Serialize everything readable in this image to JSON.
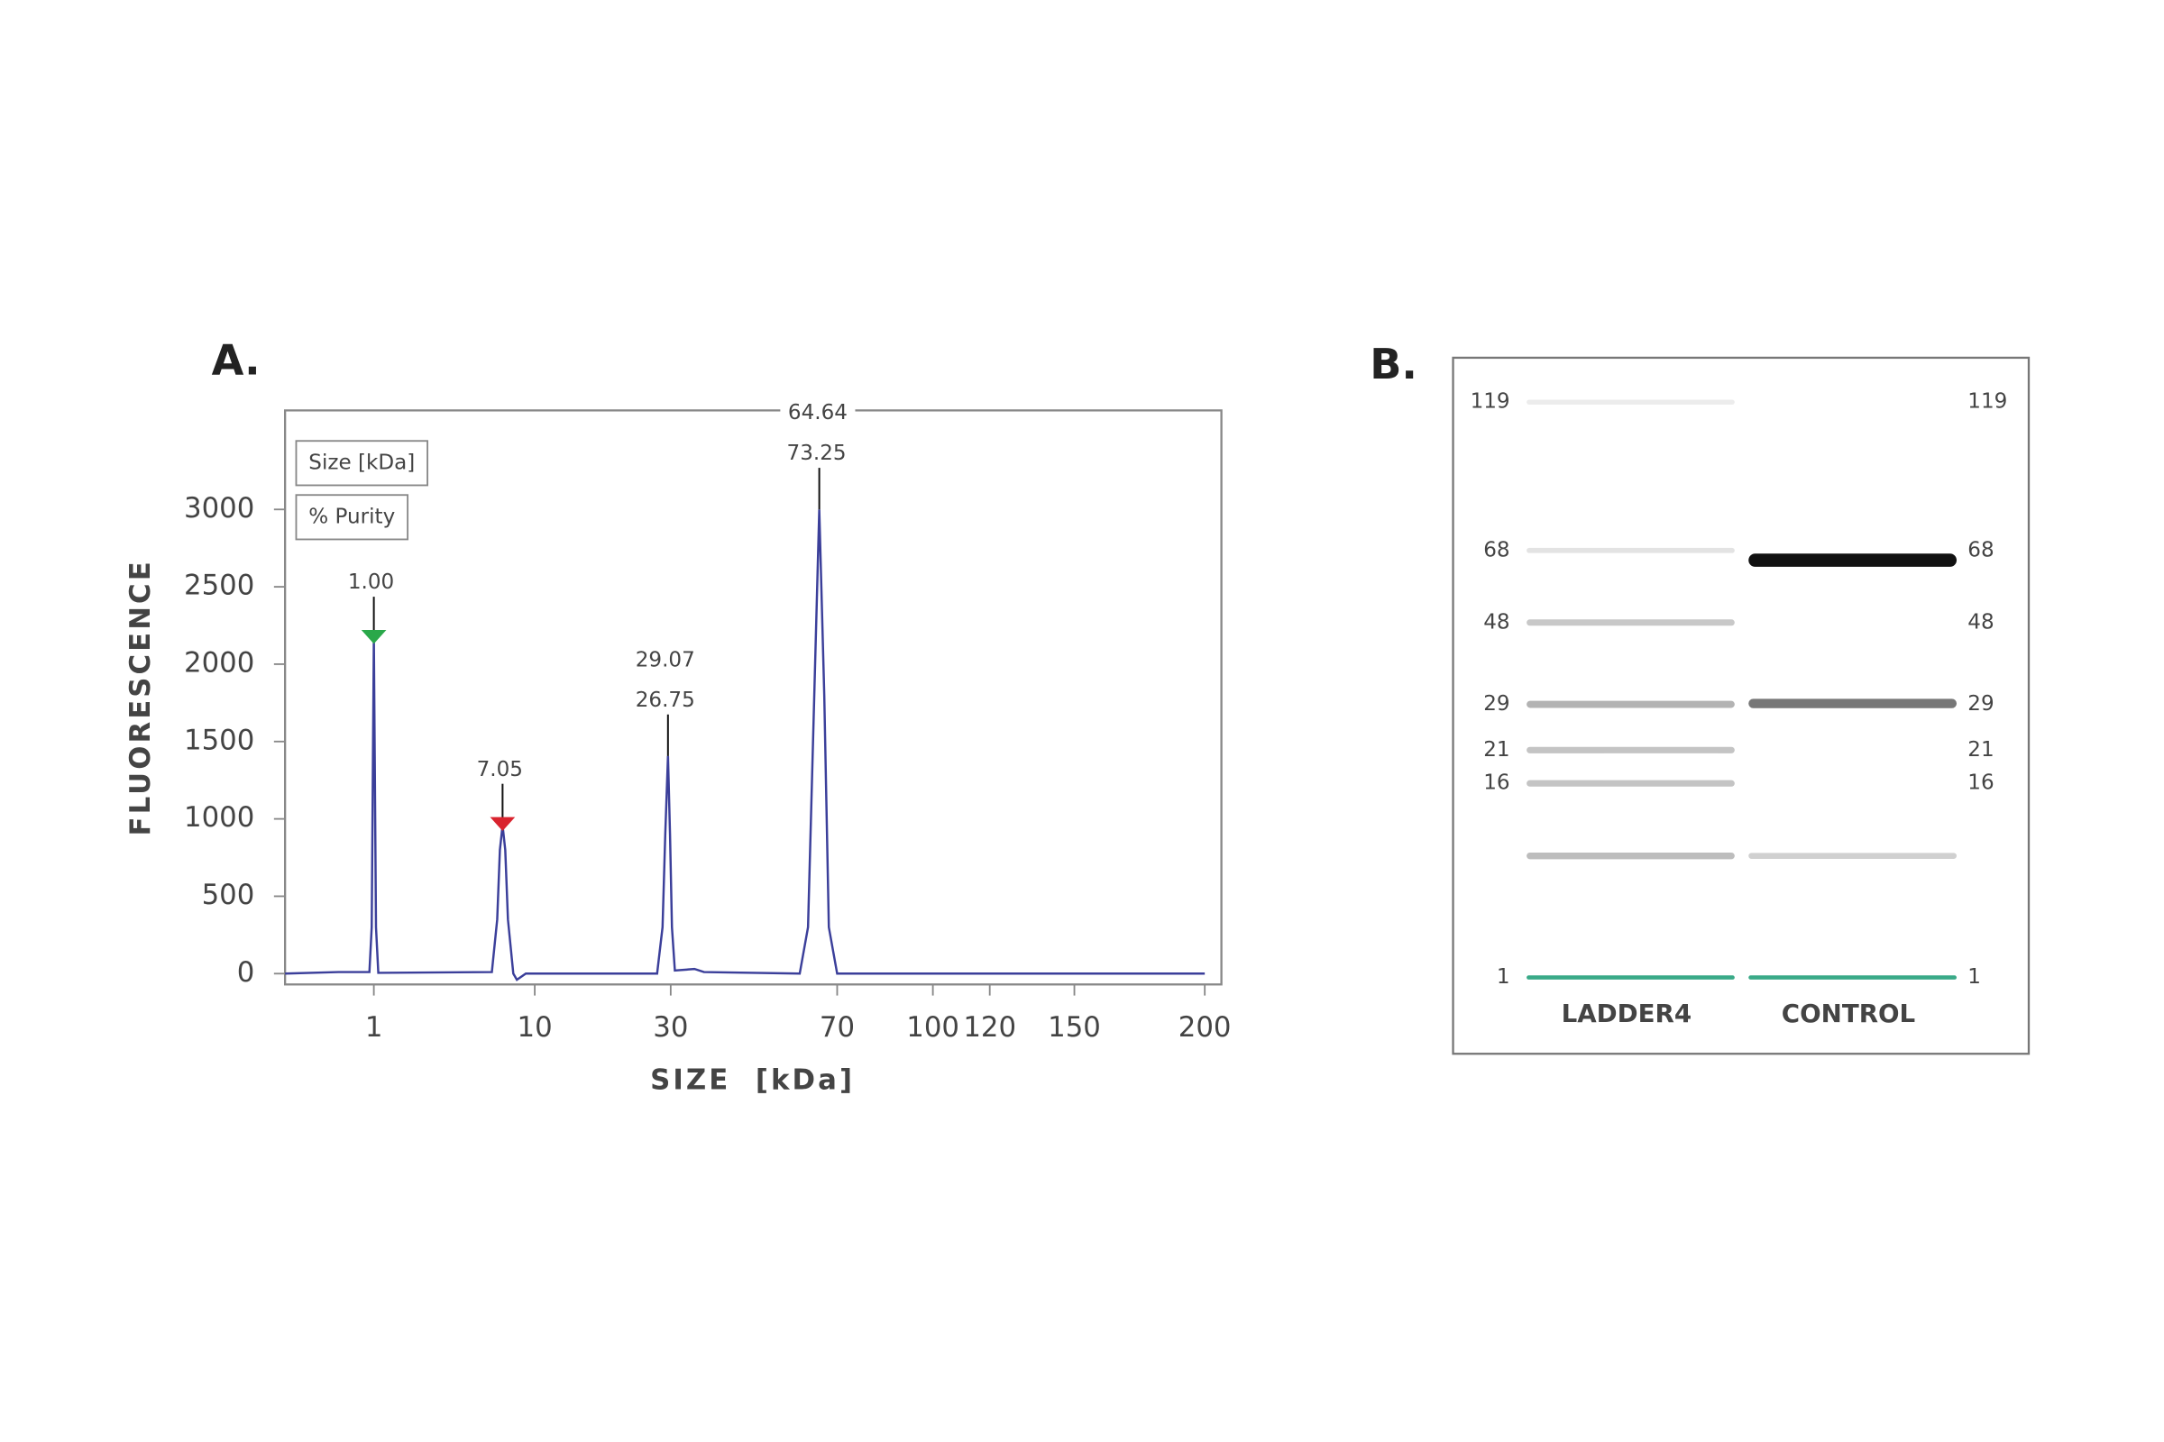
{
  "chart_data": [
    {
      "type": "line",
      "panel_label": "A.",
      "xlabel": "SIZE  [kDa]",
      "ylabel": "FLUORESCENCE",
      "legend": [
        "Size [kDa]",
        "% Purity"
      ],
      "top_label": "64.64",
      "xlim": [
        -4,
        206
      ],
      "xticks": [
        1,
        10,
        30,
        70,
        100,
        120,
        150,
        200
      ],
      "ylim": [
        -70,
        3640
      ],
      "yticks": [
        0,
        500,
        1000,
        1500,
        2000,
        2500,
        3000
      ],
      "series": [
        {
          "color": "#3b3f9a",
          "x": [
            -4,
            -1,
            0.75,
            0.88,
            0.95,
            1,
            1.05,
            1.12,
            1.25,
            7.6,
            7.9,
            8.05,
            8.2,
            8.35,
            8.5,
            8.8,
            9.0,
            9.5,
            28.0,
            28.8,
            29.2,
            29.6,
            29.9,
            30.3,
            31,
            35.7,
            38,
            61,
            63,
            64.5,
            65.7,
            66.9,
            68,
            70,
            200
          ],
          "values": [
            0,
            10,
            10,
            300,
            1400,
            2167,
            1400,
            300,
            5,
            10,
            350,
            800,
            958,
            800,
            350,
            0,
            -40,
            0,
            0,
            300,
            900,
            1406,
            900,
            300,
            20,
            30,
            10,
            0,
            300,
            1800,
            3000,
            1800,
            300,
            0,
            0
          ]
        }
      ],
      "peaks": [
        {
          "x": 1,
          "y": 2167,
          "labels": [
            "1.00"
          ],
          "marker": "#2aa84a"
        },
        {
          "x": 8.2,
          "y": 958,
          "labels": [
            "7.05"
          ],
          "marker": "#d9232e"
        },
        {
          "x": 29.6,
          "y": 1406,
          "labels": [
            "29.07",
            "26.75"
          ]
        },
        {
          "x": 65.7,
          "y": 3000,
          "labels": [
            "73.25"
          ]
        }
      ]
    },
    {
      "type": "gel",
      "panel_label": "B.",
      "markers": [
        119,
        68,
        48,
        29,
        21,
        16,
        1
      ],
      "lanes": [
        {
          "name": "LADDER4",
          "bands": [
            {
              "size": 119,
              "color": "#ececec"
            },
            {
              "size": 68,
              "color": "#e3e3e3"
            },
            {
              "size": 48,
              "color": "#c8c8c8"
            },
            {
              "size": 29,
              "color": "#b3b3b3"
            },
            {
              "size": 21,
              "color": "#c4c4c4"
            },
            {
              "size": 16,
              "color": "#c4c4c4"
            },
            {
              "size": 10.4,
              "color": "#bdbdbd"
            },
            {
              "size": 1,
              "color": "#3aaa88"
            }
          ]
        },
        {
          "name": "CONTROL",
          "bands": [
            {
              "size": 65.3,
              "color": "#111111"
            },
            {
              "size": 29.2,
              "color": "#777777"
            },
            {
              "size": 10.4,
              "color": "#d0d0d0"
            },
            {
              "size": 1,
              "color": "#3aaa88"
            }
          ]
        }
      ]
    }
  ]
}
